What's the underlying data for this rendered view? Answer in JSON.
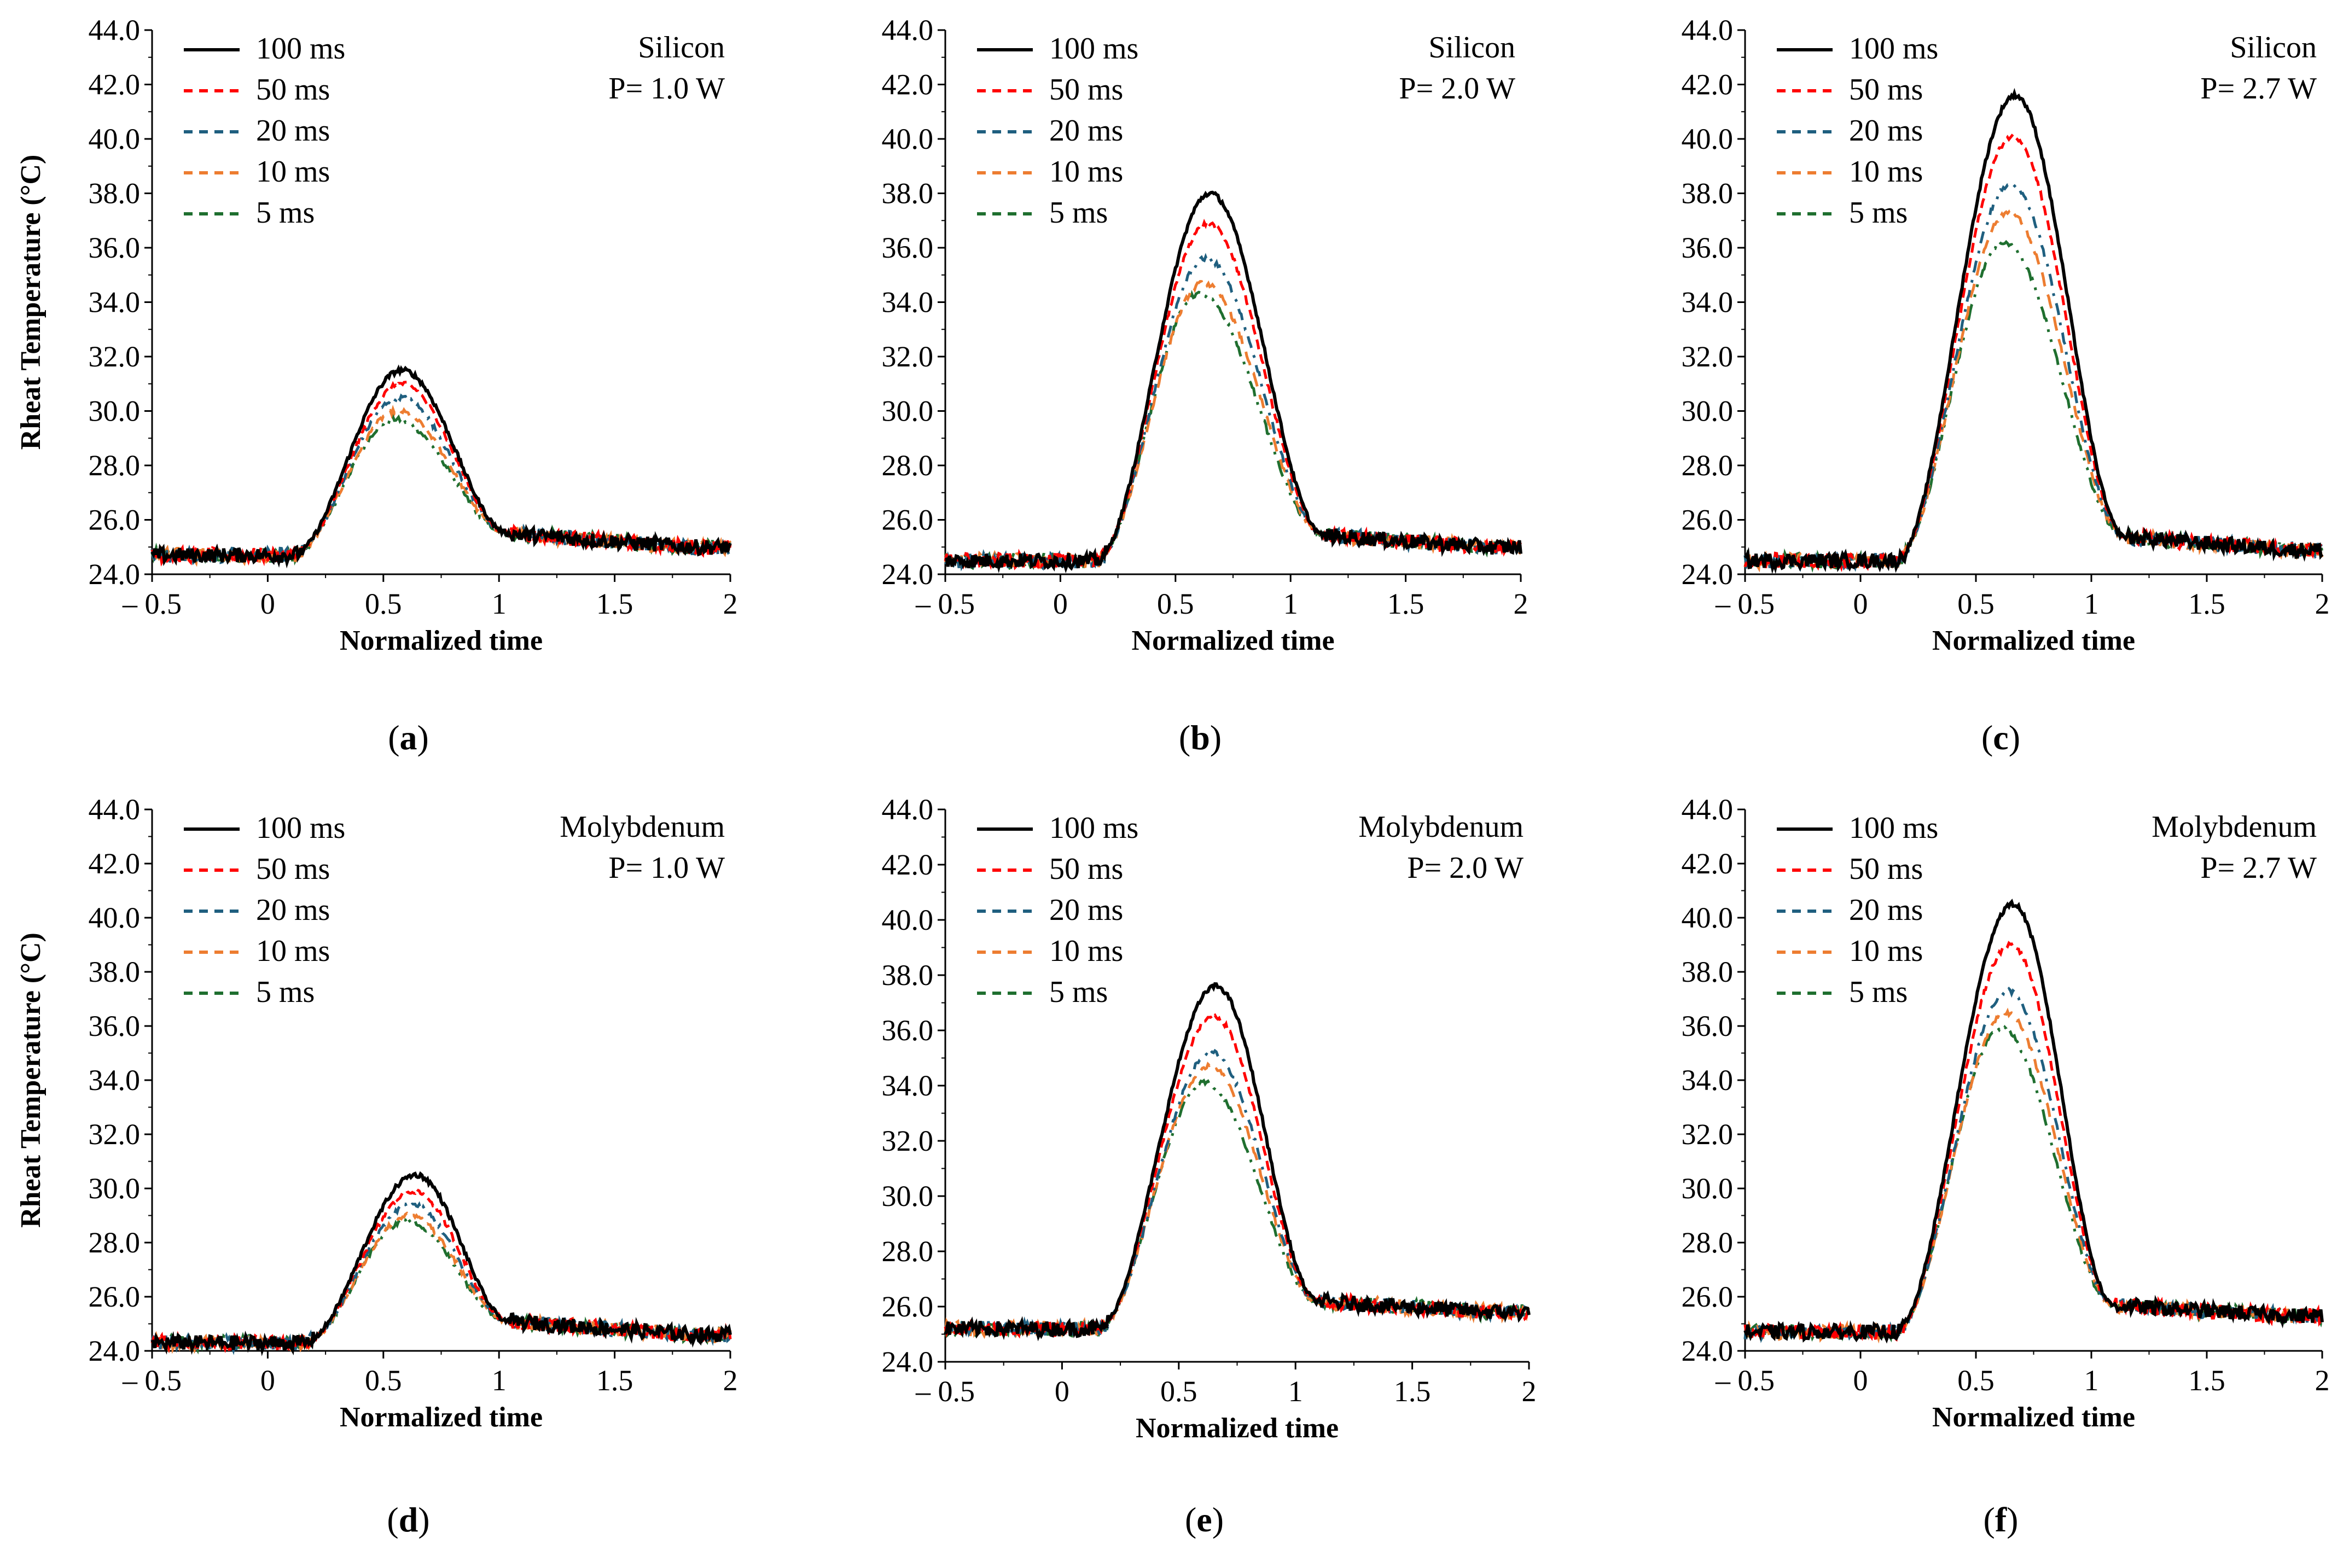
{
  "chart_data": [
    {
      "id": "a",
      "type": "line",
      "material": "Silicon",
      "power": "P= 1.0 W",
      "caption_letter": "a",
      "xlabel": "Normalized time",
      "ylabel": "Rheat Temperature  (°C)",
      "xlim": [
        -0.5,
        2
      ],
      "ylim": [
        24,
        44
      ],
      "xticks": [
        "– 0.5",
        "0",
        "0.5",
        "1",
        "1.5",
        "2"
      ],
      "yticks": [
        "24.0",
        "26.0",
        "28.0",
        "30.0",
        "32.0",
        "34.0",
        "36.0",
        "38.0",
        "40.0",
        "42.0",
        "44.0"
      ],
      "baseline_start": 24.7,
      "baseline_end": 25.0,
      "rise_start": 0.1,
      "fall_end": 1.05,
      "series": [
        {
          "name": "100 ms",
          "peak_t": 0.58,
          "peak": 31.5
        },
        {
          "name": "50 ms",
          "peak_t": 0.58,
          "peak": 31.0
        },
        {
          "name": "20 ms",
          "peak_t": 0.57,
          "peak": 30.5
        },
        {
          "name": "10 ms",
          "peak_t": 0.56,
          "peak": 30.0
        },
        {
          "name": "5 ms",
          "peak_t": 0.55,
          "peak": 29.7
        }
      ]
    },
    {
      "id": "b",
      "type": "line",
      "material": "Silicon",
      "power": "P= 2.0 W",
      "caption_letter": "b",
      "xlabel": "Normalized time",
      "ylabel": "",
      "xlim": [
        -0.5,
        2
      ],
      "ylim": [
        24,
        44
      ],
      "xticks": [
        "– 0.5",
        "0",
        "0.5",
        "1",
        "1.5",
        "2"
      ],
      "yticks": [
        "24.0",
        "26.0",
        "28.0",
        "30.0",
        "32.0",
        "34.0",
        "36.0",
        "38.0",
        "40.0",
        "42.0",
        "44.0"
      ],
      "baseline_start": 24.5,
      "baseline_end": 25.0,
      "rise_start": 0.15,
      "fall_end": 1.15,
      "series": [
        {
          "name": "100 ms",
          "peak_t": 0.65,
          "peak": 38.0
        },
        {
          "name": "50 ms",
          "peak_t": 0.64,
          "peak": 36.9
        },
        {
          "name": "20 ms",
          "peak_t": 0.63,
          "peak": 35.6
        },
        {
          "name": "10 ms",
          "peak_t": 0.62,
          "peak": 34.7
        },
        {
          "name": "5 ms",
          "peak_t": 0.6,
          "peak": 34.3
        }
      ]
    },
    {
      "id": "c",
      "type": "line",
      "material": "Silicon",
      "power": "P= 2.7 W",
      "caption_letter": "c",
      "xlabel": "Normalized time",
      "ylabel": "",
      "xlim": [
        -0.5,
        2
      ],
      "ylim": [
        24,
        44
      ],
      "xticks": [
        "– 0.5",
        "0",
        "0.5",
        "1",
        "1.5",
        "2"
      ],
      "yticks": [
        "24.0",
        "26.0",
        "28.0",
        "30.0",
        "32.0",
        "34.0",
        "36.0",
        "38.0",
        "40.0",
        "42.0",
        "44.0"
      ],
      "baseline_start": 24.5,
      "baseline_end": 24.9,
      "rise_start": 0.15,
      "fall_end": 1.15,
      "series": [
        {
          "name": "100 ms",
          "peak_t": 0.67,
          "peak": 41.6
        },
        {
          "name": "50 ms",
          "peak_t": 0.66,
          "peak": 40.1
        },
        {
          "name": "20 ms",
          "peak_t": 0.65,
          "peak": 38.3
        },
        {
          "name": "10 ms",
          "peak_t": 0.64,
          "peak": 37.3
        },
        {
          "name": "5 ms",
          "peak_t": 0.62,
          "peak": 36.2
        }
      ]
    },
    {
      "id": "d",
      "type": "line",
      "material": "Molybdenum",
      "power": "P= 1.0 W",
      "caption_letter": "d",
      "xlabel": "Normalized time",
      "ylabel": "Rheat Temperature  (°C)",
      "xlim": [
        -0.5,
        2
      ],
      "ylim": [
        24,
        44
      ],
      "xticks": [
        "– 0.5",
        "0",
        "0.5",
        "1",
        "1.5",
        "2"
      ],
      "yticks": [
        "24.0",
        "26.0",
        "28.0",
        "30.0",
        "32.0",
        "34.0",
        "36.0",
        "38.0",
        "40.0",
        "42.0",
        "44.0"
      ],
      "baseline_start": 24.3,
      "baseline_end": 24.6,
      "rise_start": 0.15,
      "fall_end": 1.05,
      "series": [
        {
          "name": "100 ms",
          "peak_t": 0.64,
          "peak": 30.5
        },
        {
          "name": "50 ms",
          "peak_t": 0.63,
          "peak": 29.9
        },
        {
          "name": "20 ms",
          "peak_t": 0.62,
          "peak": 29.4
        },
        {
          "name": "10 ms",
          "peak_t": 0.61,
          "peak": 29.0
        },
        {
          "name": "5 ms",
          "peak_t": 0.6,
          "peak": 28.8
        }
      ]
    },
    {
      "id": "e",
      "type": "line",
      "material": "Molybdenum",
      "power": "P= 2.0 W",
      "caption_letter": "e",
      "xlabel": "Normalized time",
      "ylabel": "",
      "xlim": [
        -0.5,
        2
      ],
      "ylim": [
        24,
        44
      ],
      "xticks": [
        "– 0.5",
        "0",
        "0.5",
        "1",
        "1.5",
        "2"
      ],
      "yticks": [
        "24.0",
        "26.0",
        "28.0",
        "30.0",
        "32.0",
        "34.0",
        "36.0",
        "38.0",
        "40.0",
        "42.0",
        "44.0"
      ],
      "baseline_start": 25.2,
      "baseline_end": 25.8,
      "rise_start": 0.15,
      "fall_end": 1.1,
      "series": [
        {
          "name": "100 ms",
          "peak_t": 0.66,
          "peak": 37.6
        },
        {
          "name": "50 ms",
          "peak_t": 0.65,
          "peak": 36.5
        },
        {
          "name": "20 ms",
          "peak_t": 0.64,
          "peak": 35.2
        },
        {
          "name": "10 ms",
          "peak_t": 0.63,
          "peak": 34.7
        },
        {
          "name": "5 ms",
          "peak_t": 0.61,
          "peak": 34.1
        }
      ]
    },
    {
      "id": "f",
      "type": "line",
      "material": "Molybdenum",
      "power": "P= 2.7 W",
      "caption_letter": "f",
      "xlabel": "Normalized time",
      "ylabel": "",
      "xlim": [
        -0.5,
        2
      ],
      "ylim": [
        24,
        44
      ],
      "xticks": [
        "– 0.5",
        "0",
        "0.5",
        "1",
        "1.5",
        "2"
      ],
      "yticks": [
        "24.0",
        "26.0",
        "28.0",
        "30.0",
        "32.0",
        "34.0",
        "36.0",
        "38.0",
        "40.0",
        "42.0",
        "44.0"
      ],
      "baseline_start": 24.7,
      "baseline_end": 25.3,
      "rise_start": 0.15,
      "fall_end": 1.1,
      "series": [
        {
          "name": "100 ms",
          "peak_t": 0.66,
          "peak": 40.5
        },
        {
          "name": "50 ms",
          "peak_t": 0.65,
          "peak": 39.0
        },
        {
          "name": "20 ms",
          "peak_t": 0.64,
          "peak": 37.3
        },
        {
          "name": "10 ms",
          "peak_t": 0.63,
          "peak": 36.5
        },
        {
          "name": "5 ms",
          "peak_t": 0.61,
          "peak": 35.9
        }
      ]
    }
  ],
  "styles": {
    "100 ms": {
      "color": "#000000",
      "dash": "none"
    },
    "50 ms": {
      "color": "#ff0000",
      "dash": "18 10"
    },
    "20 ms": {
      "color": "#1f5f7f",
      "dash": "22 14 5 14"
    },
    "10 ms": {
      "color": "#ed7d31",
      "dash": "26 16"
    },
    "5 ms": {
      "color": "#1f6f2f",
      "dash": "30 14 5 14 5 14"
    }
  }
}
